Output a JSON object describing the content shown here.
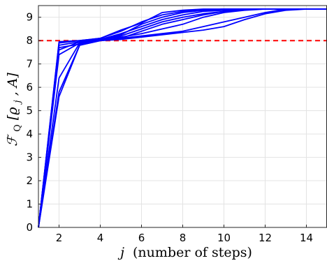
{
  "chart_data": {
    "type": "line",
    "title": "",
    "xlabel_var": "j",
    "xlabel_text": "(number of steps)",
    "ylabel_var": "ℱ",
    "ylabel_sub": "Q",
    "ylabel_args": "[ϱ",
    "ylabel_args_sub": "j",
    "ylabel_args_tail": ", A]",
    "xlim": [
      1,
      15
    ],
    "ylim": [
      0,
      9.5
    ],
    "xticks": [
      2,
      4,
      6,
      8,
      10,
      12,
      14
    ],
    "yticks": [
      0,
      1,
      2,
      3,
      4,
      5,
      6,
      7,
      8,
      9
    ],
    "grid": true,
    "line_color": "#0000ff",
    "reference_line": {
      "y": 8,
      "color": "#ff0000",
      "style": "dashed"
    },
    "x": [
      1,
      2,
      3,
      4,
      5,
      6,
      7,
      8,
      9,
      10,
      11,
      12,
      13,
      14,
      15
    ],
    "series": [
      {
        "values": [
          0,
          5.6,
          7.8,
          8.0,
          8.1,
          8.2,
          8.3,
          8.4,
          8.6,
          8.8,
          9.0,
          9.2,
          9.35,
          9.35,
          9.35
        ]
      },
      {
        "values": [
          0,
          5.8,
          7.8,
          8.0,
          8.05,
          8.15,
          8.25,
          8.35,
          8.45,
          8.6,
          8.9,
          9.15,
          9.3,
          9.35,
          9.35
        ]
      },
      {
        "values": [
          0,
          6.4,
          7.9,
          8.05,
          8.15,
          8.3,
          8.5,
          8.7,
          9.0,
          9.2,
          9.3,
          9.35,
          9.35,
          9.35,
          9.35
        ]
      },
      {
        "values": [
          0,
          7.4,
          7.9,
          8.0,
          8.1,
          8.4,
          8.7,
          8.9,
          9.1,
          9.25,
          9.35,
          9.35,
          9.35,
          9.35,
          9.35
        ]
      },
      {
        "values": [
          0,
          7.6,
          7.95,
          8.05,
          8.2,
          8.5,
          8.8,
          9.0,
          9.15,
          9.25,
          9.35,
          9.35,
          9.35,
          9.35,
          9.35
        ]
      },
      {
        "values": [
          0,
          7.7,
          7.85,
          8.05,
          8.3,
          8.6,
          8.9,
          9.1,
          9.25,
          9.3,
          9.35,
          9.35,
          9.35,
          9.35,
          9.35
        ]
      },
      {
        "values": [
          0,
          7.8,
          7.95,
          8.0,
          8.25,
          8.7,
          9.0,
          9.2,
          9.3,
          9.35,
          9.35,
          9.35,
          9.35,
          9.35,
          9.35
        ]
      },
      {
        "values": [
          0,
          7.9,
          8.0,
          8.1,
          8.4,
          8.8,
          9.1,
          9.25,
          9.3,
          9.35,
          9.35,
          9.35,
          9.35,
          9.35,
          9.35
        ]
      },
      {
        "values": [
          0,
          7.95,
          8.0,
          8.1,
          8.45,
          8.75,
          9.2,
          9.3,
          9.35,
          9.35,
          9.35,
          9.35,
          9.35,
          9.35,
          9.35
        ]
      }
    ]
  }
}
